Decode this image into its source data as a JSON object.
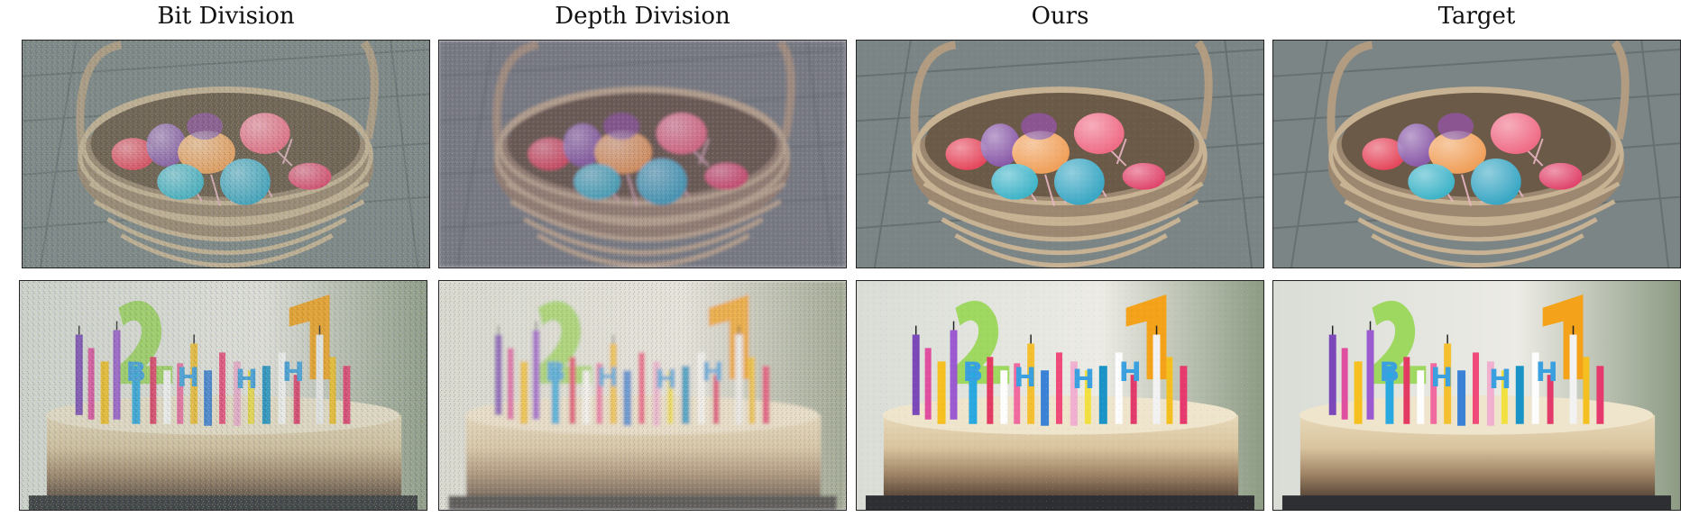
{
  "columns": [
    {
      "title": "Bit Division",
      "variant": "bit"
    },
    {
      "title": "Depth Division",
      "variant": "depth"
    },
    {
      "title": "Ours",
      "variant": "ours"
    },
    {
      "title": "Target",
      "variant": "target"
    }
  ],
  "rows": [
    {
      "scene": "easter-egg-basket"
    },
    {
      "scene": "birthday-cake-candles"
    }
  ],
  "colors": {
    "deck": "#7d8585",
    "wicker": "#b39a7e",
    "egg_red": "#e5485d",
    "egg_purple": "#8a5aa8",
    "egg_orange": "#f0a05a",
    "egg_pink": "#ef6c86",
    "egg_blue": "#3fb4c8",
    "cake_top": "#e9dcc0",
    "cake_crust": "#5a4636",
    "candle_green": "#9fd860",
    "candle_orange": "#f4a21a"
  }
}
